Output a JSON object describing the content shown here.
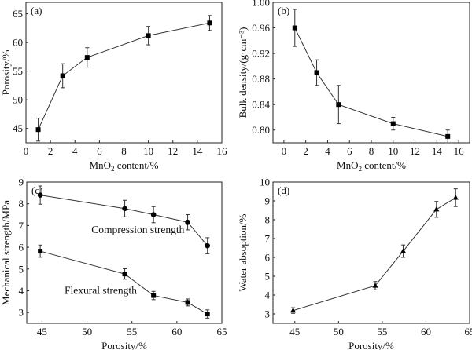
{
  "chart_data": [
    {
      "type": "line",
      "panel": "(a)",
      "title": "",
      "xlabel": "MnO2 content/%",
      "ylabel": "Porosity/%",
      "xlim": [
        0,
        16
      ],
      "ylim": [
        42.5,
        67
      ],
      "xticks": [
        0,
        2,
        4,
        6,
        8,
        10,
        12,
        14,
        16
      ],
      "yticks": [
        45,
        50,
        55,
        60,
        65
      ],
      "marker": "square",
      "series": [
        {
          "name": "Porosity",
          "x": [
            1,
            3,
            5,
            10,
            15
          ],
          "y": [
            44.8,
            54.2,
            57.4,
            61.2,
            63.4
          ],
          "err": [
            2.0,
            2.1,
            1.7,
            1.6,
            1.3
          ]
        }
      ]
    },
    {
      "type": "line",
      "panel": "(b)",
      "title": "",
      "xlabel": "MnO2 content/%",
      "ylabel": "Bulk density/(g·cm⁻³)",
      "xlim": [
        -1,
        17
      ],
      "ylim": [
        0.78,
        1.0
      ],
      "xticks": [
        0,
        2,
        4,
        6,
        8,
        10,
        12,
        14,
        16
      ],
      "yticks": [
        0.8,
        0.84,
        0.88,
        0.92,
        0.96,
        1.0
      ],
      "ytick_labels": [
        "0.80",
        "0.84",
        "0.88",
        "0.92",
        "0.96",
        "1.00"
      ],
      "marker": "square",
      "series": [
        {
          "name": "Bulk density",
          "x": [
            1,
            3,
            5,
            10,
            15
          ],
          "y": [
            0.96,
            0.89,
            0.84,
            0.81,
            0.79
          ],
          "err": [
            0.029,
            0.02,
            0.03,
            0.01,
            0.01
          ]
        }
      ]
    },
    {
      "type": "line",
      "panel": "(c)",
      "title": "",
      "xlabel": "Porosity/%",
      "ylabel": "Mechanical strength/MPa",
      "xlim": [
        43.3,
        65
      ],
      "ylim": [
        2.5,
        9
      ],
      "xticks": [
        45,
        50,
        55,
        60,
        65
      ],
      "yticks": [
        3,
        4,
        5,
        6,
        7,
        8,
        9
      ],
      "annotations": [
        "Compression strength",
        "Flexural strength"
      ],
      "series": [
        {
          "name": "Compression strength",
          "marker": "circle",
          "x": [
            44.8,
            54.2,
            57.4,
            61.2,
            63.4
          ],
          "y": [
            8.4,
            7.78,
            7.5,
            7.15,
            6.07
          ],
          "err": [
            0.42,
            0.38,
            0.37,
            0.35,
            0.37
          ]
        },
        {
          "name": "Flexural strength",
          "marker": "square",
          "x": [
            44.8,
            54.2,
            57.4,
            61.2,
            63.4
          ],
          "y": [
            5.82,
            4.77,
            3.78,
            3.46,
            2.93
          ],
          "err": [
            0.28,
            0.24,
            0.19,
            0.16,
            0.19
          ]
        }
      ]
    },
    {
      "type": "line",
      "panel": "(d)",
      "title": "",
      "xlabel": "Porosity/%",
      "ylabel": "Water absoption/%",
      "xlim": [
        42.5,
        65
      ],
      "ylim": [
        2.5,
        10
      ],
      "xticks": [
        45,
        50,
        55,
        60,
        65
      ],
      "yticks": [
        3,
        4,
        5,
        6,
        7,
        8,
        9,
        10
      ],
      "marker": "triangle",
      "series": [
        {
          "name": "Water absorption",
          "x": [
            44.8,
            54.2,
            57.4,
            61.2,
            63.4
          ],
          "y": [
            3.18,
            4.5,
            6.33,
            8.55,
            9.17
          ],
          "err": [
            0.15,
            0.22,
            0.33,
            0.42,
            0.47
          ]
        }
      ]
    }
  ]
}
